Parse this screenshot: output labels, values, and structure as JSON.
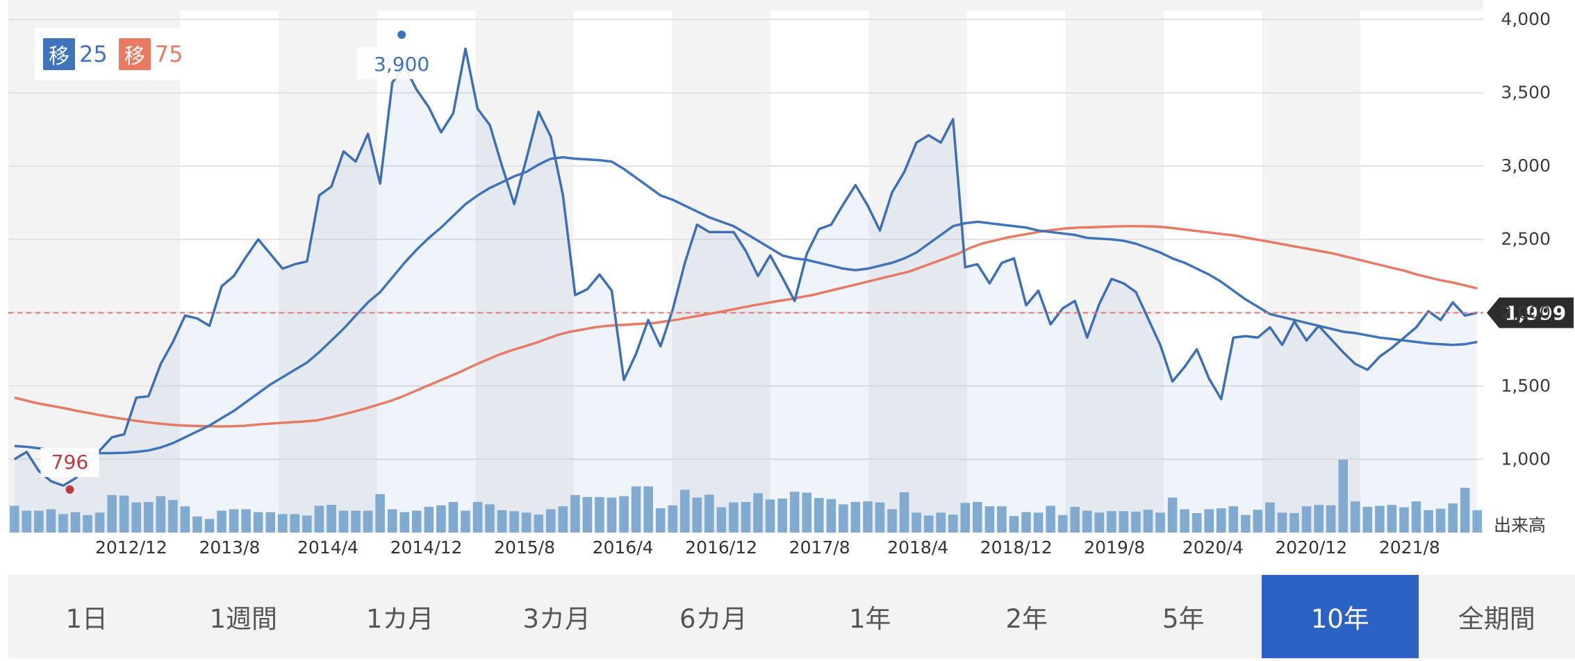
{
  "legend": [
    {
      "badge": "移",
      "label": "25",
      "color": "#3f74bd"
    },
    {
      "badge": "移",
      "label": "75",
      "color": "#e87a62"
    }
  ],
  "tabs": [
    {
      "label": "1日",
      "active": false
    },
    {
      "label": "1週間",
      "active": false
    },
    {
      "label": "1カ月",
      "active": false
    },
    {
      "label": "3カ月",
      "active": false
    },
    {
      "label": "6カ月",
      "active": false
    },
    {
      "label": "1年",
      "active": false
    },
    {
      "label": "2年",
      "active": false
    },
    {
      "label": "5年",
      "active": false
    },
    {
      "label": "10年",
      "active": true
    },
    {
      "label": "全期間",
      "active": false
    }
  ],
  "chart_data": {
    "type": "line",
    "x_tick_labels": [
      "2012/12",
      "2013/8",
      "2014/4",
      "2014/12",
      "2015/8",
      "2016/4",
      "2016/12",
      "2017/8",
      "2018/4",
      "2018/12",
      "2019/8",
      "2020/4",
      "2020/12",
      "2021/8"
    ],
    "x_tick_positions": [
      2,
      10,
      18,
      26,
      34,
      42,
      50,
      58,
      66,
      74,
      82,
      90,
      98,
      106
    ],
    "x_range": [
      -8,
      112
    ],
    "y_ticks": [
      1000,
      1500,
      2000,
      2500,
      3000,
      3500,
      4000
    ],
    "y_tick_labels": [
      "1,000",
      "1,500",
      "2,000",
      "2,500",
      "3,000",
      "3,500",
      "4,000"
    ],
    "ylim": [
      500,
      4000
    ],
    "volume_label": "出来高",
    "current_price": {
      "value": 1999,
      "label": "1,999"
    },
    "max_annotation": {
      "value": 3900,
      "label": "3,900",
      "x": 24
    },
    "min_annotation": {
      "value": 796,
      "label": "796",
      "x": -3
    },
    "colors": {
      "price": "#3c6fb5",
      "ma25": "#3f74bd",
      "ma75": "#e87a62",
      "volume": "#86aed0",
      "current": "#e8736a",
      "max": "#3f74bd",
      "min": "#c0393f",
      "band": "#f3f3f3",
      "grid": "#e2e2e2"
    },
    "price": [
      1000,
      1050,
      920,
      850,
      820,
      870,
      950,
      1060,
      1150,
      1170,
      1420,
      1430,
      1650,
      1800,
      1980,
      1960,
      1910,
      2180,
      2250,
      2380,
      2500,
      2400,
      2300,
      2330,
      2350,
      2800,
      2860,
      3100,
      3030,
      3220,
      2880,
      3570,
      3680,
      3520,
      3400,
      3230,
      3360,
      3800,
      3390,
      3280,
      3000,
      2740,
      3050,
      3370,
      3200,
      2800,
      2120,
      2160,
      2260,
      2150,
      1540,
      1720,
      1950,
      1770,
      2020,
      2340,
      2600,
      2550,
      2550,
      2550,
      2420,
      2250,
      2390,
      2240,
      2080,
      2400,
      2570,
      2600,
      2740,
      2870,
      2730,
      2560,
      2820,
      2960,
      3160,
      3210,
      3160,
      3320,
      2310,
      2330,
      2200,
      2340,
      2370,
      2050,
      2150,
      1920,
      2030,
      2080,
      1830,
      2060,
      2230,
      2200,
      2140,
      1960,
      1780,
      1530,
      1630,
      1750,
      1550,
      1410,
      1830,
      1840,
      1830,
      1900,
      1780,
      1940,
      1810,
      1910,
      1820,
      1730,
      1650,
      1610,
      1700,
      1760,
      1830,
      1900,
      2010,
      1950,
      2070,
      1980,
      2000
    ],
    "ma25": [
      1090,
      1085,
      1075,
      1065,
      1055,
      1048,
      1044,
      1042,
      1042,
      1044,
      1050,
      1060,
      1080,
      1110,
      1150,
      1190,
      1230,
      1280,
      1330,
      1390,
      1450,
      1510,
      1560,
      1610,
      1660,
      1730,
      1810,
      1890,
      1980,
      2070,
      2140,
      2240,
      2340,
      2430,
      2510,
      2580,
      2660,
      2740,
      2800,
      2850,
      2890,
      2930,
      2960,
      3010,
      3050,
      3060,
      3050,
      3045,
      3040,
      3030,
      2980,
      2920,
      2860,
      2800,
      2770,
      2730,
      2690,
      2650,
      2620,
      2590,
      2540,
      2490,
      2440,
      2390,
      2370,
      2360,
      2340,
      2320,
      2300,
      2290,
      2300,
      2320,
      2340,
      2370,
      2410,
      2470,
      2530,
      2590,
      2610,
      2620,
      2610,
      2600,
      2590,
      2580,
      2560,
      2550,
      2540,
      2530,
      2510,
      2505,
      2500,
      2490,
      2470,
      2440,
      2410,
      2370,
      2340,
      2300,
      2260,
      2210,
      2150,
      2090,
      2040,
      1990,
      1970,
      1950,
      1930,
      1910,
      1890,
      1870,
      1860,
      1845,
      1830,
      1820,
      1810,
      1800,
      1790,
      1785,
      1780,
      1785,
      1800
    ],
    "ma75": [
      1420,
      1400,
      1380,
      1365,
      1350,
      1333,
      1318,
      1302,
      1288,
      1275,
      1263,
      1252,
      1243,
      1235,
      1230,
      1227,
      1225,
      1224,
      1225,
      1228,
      1235,
      1242,
      1248,
      1253,
      1258,
      1265,
      1282,
      1302,
      1323,
      1345,
      1370,
      1395,
      1425,
      1460,
      1495,
      1530,
      1565,
      1600,
      1640,
      1675,
      1710,
      1740,
      1765,
      1790,
      1820,
      1850,
      1870,
      1885,
      1900,
      1910,
      1915,
      1920,
      1925,
      1930,
      1942,
      1955,
      1970,
      1985,
      2000,
      2015,
      2032,
      2048,
      2062,
      2077,
      2090,
      2105,
      2120,
      2140,
      2160,
      2180,
      2200,
      2220,
      2240,
      2260,
      2280,
      2310,
      2340,
      2370,
      2400,
      2440,
      2470,
      2490,
      2510,
      2525,
      2540,
      2555,
      2565,
      2575,
      2580,
      2582,
      2585,
      2588,
      2590,
      2590,
      2588,
      2584,
      2575,
      2565,
      2555,
      2545,
      2535,
      2525,
      2510,
      2495,
      2480,
      2465,
      2450,
      2435,
      2420,
      2405,
      2385,
      2365,
      2345,
      2325,
      2305,
      2285,
      2260,
      2240,
      2220,
      2205,
      2185,
      2165
    ],
    "volume": [
      0.55,
      0.45,
      0.45,
      0.48,
      0.38,
      0.42,
      0.36,
      0.41,
      0.77,
      0.76,
      0.62,
      0.63,
      0.75,
      0.67,
      0.54,
      0.33,
      0.28,
      0.45,
      0.48,
      0.48,
      0.42,
      0.42,
      0.38,
      0.38,
      0.35,
      0.55,
      0.57,
      0.45,
      0.45,
      0.45,
      0.79,
      0.48,
      0.42,
      0.45,
      0.53,
      0.56,
      0.63,
      0.45,
      0.63,
      0.58,
      0.46,
      0.44,
      0.41,
      0.37,
      0.48,
      0.54,
      0.77,
      0.73,
      0.73,
      0.72,
      0.75,
      0.95,
      0.95,
      0.5,
      0.56,
      0.88,
      0.72,
      0.78,
      0.52,
      0.62,
      0.63,
      0.81,
      0.68,
      0.7,
      0.84,
      0.82,
      0.71,
      0.69,
      0.58,
      0.63,
      0.64,
      0.62,
      0.48,
      0.83,
      0.41,
      0.35,
      0.41,
      0.37,
      0.61,
      0.63,
      0.54,
      0.54,
      0.34,
      0.42,
      0.41,
      0.55,
      0.36,
      0.53,
      0.45,
      0.41,
      0.44,
      0.44,
      0.43,
      0.47,
      0.41,
      0.72,
      0.48,
      0.4,
      0.48,
      0.5,
      0.54,
      0.36,
      0.47,
      0.62,
      0.41,
      0.4,
      0.54,
      0.57,
      0.56,
      1.5,
      0.64,
      0.53,
      0.55,
      0.57,
      0.52,
      0.64,
      0.46,
      0.49,
      0.6,
      0.92,
      0.46
    ]
  }
}
